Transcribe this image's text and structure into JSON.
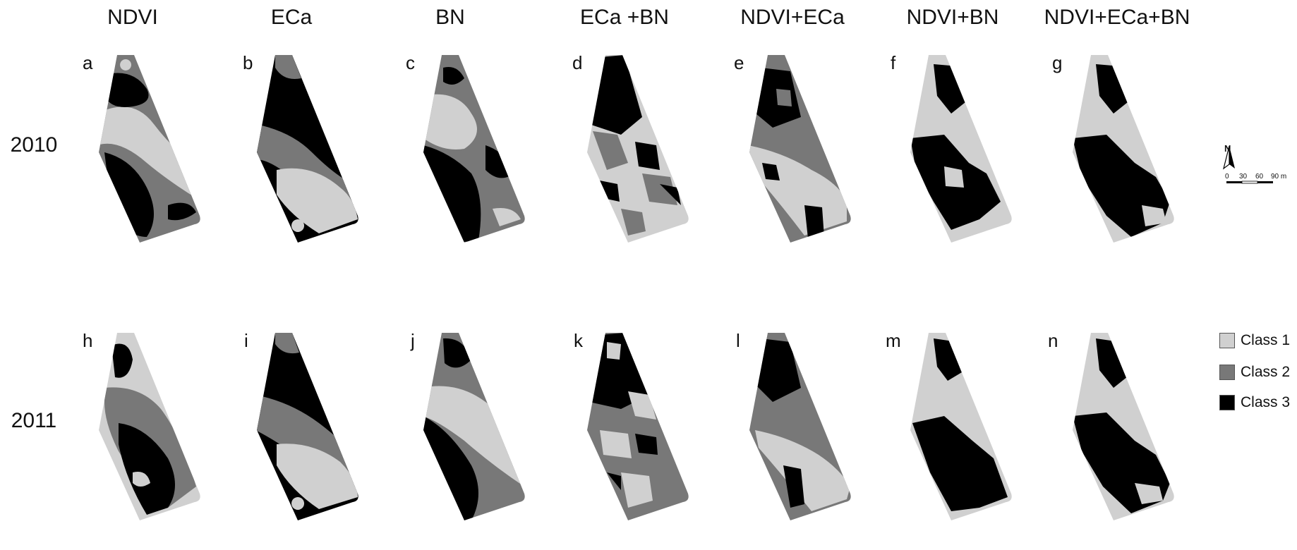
{
  "columns": [
    "NDVI",
    "ECa",
    "BN",
    "ECa +BN",
    "NDVI+ECa",
    "NDVI+BN",
    "NDVI+ECa+BN"
  ],
  "years": [
    "2010",
    "2011"
  ],
  "panel_letters": [
    [
      "a",
      "b",
      "c",
      "d",
      "e",
      "f",
      "g"
    ],
    [
      "h",
      "i",
      "j",
      "k",
      "l",
      "m",
      "n"
    ]
  ],
  "legend": [
    {
      "label": "Class 1",
      "color": "#d0d0d0"
    },
    {
      "label": "Class 2",
      "color": "#787878"
    },
    {
      "label": "Class 3",
      "color": "#000000"
    }
  ],
  "north_label": "N",
  "scale_bar": {
    "ticks": [
      "0",
      "30",
      "60",
      "90 m"
    ]
  }
}
